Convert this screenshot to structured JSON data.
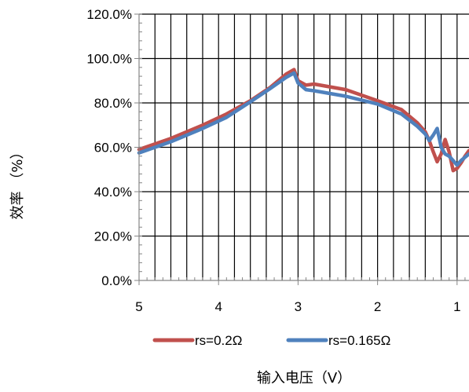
{
  "chart_data": {
    "type": "line",
    "title": "",
    "xlabel": "输入电压（V）",
    "ylabel": "效率 （%）",
    "x_reversed": true,
    "xlim": [
      5,
      0.85
    ],
    "ylim": [
      0,
      120
    ],
    "x_ticks": [
      {
        "value": 5,
        "label": "5"
      },
      {
        "value": 4,
        "label": "4"
      },
      {
        "value": 3,
        "label": "3"
      },
      {
        "value": 2,
        "label": "2"
      },
      {
        "value": 1,
        "label": "1"
      }
    ],
    "y_ticks": [
      {
        "value": 0,
        "label": "0.0%"
      },
      {
        "value": 20,
        "label": "20.0%"
      },
      {
        "value": 40,
        "label": "40.0%"
      },
      {
        "value": 60,
        "label": "60.0%"
      },
      {
        "value": 80,
        "label": "80.0%"
      },
      {
        "value": 100,
        "label": "100.0%"
      },
      {
        "value": 120,
        "label": "120.0%"
      }
    ],
    "grid": true,
    "legend_position": "bottom",
    "series": [
      {
        "name": "rs=0.2Ω",
        "color": "#C0504D",
        "x": [
          5.0,
          4.6,
          4.2,
          3.9,
          3.6,
          3.35,
          3.15,
          3.05,
          3.0,
          2.9,
          2.8,
          2.4,
          2.0,
          1.7,
          1.5,
          1.4,
          1.35,
          1.3,
          1.25,
          1.2,
          1.15,
          1.1,
          1.05,
          1.0,
          0.95,
          0.9,
          0.85
        ],
        "y": [
          59,
          64,
          70,
          75,
          81,
          87,
          93,
          95,
          90,
          88,
          88.5,
          86,
          81,
          77,
          71,
          67,
          63,
          58,
          53.5,
          57,
          63.5,
          58,
          49.5,
          50.5,
          53,
          56,
          58.5
        ]
      },
      {
        "name": "rs=0.165Ω",
        "color": "#4F81BD",
        "x": [
          5.0,
          4.6,
          4.2,
          3.9,
          3.6,
          3.35,
          3.15,
          3.05,
          3.0,
          2.9,
          2.8,
          2.4,
          2.0,
          1.7,
          1.5,
          1.4,
          1.35,
          1.3,
          1.25,
          1.2,
          1.15,
          1.1,
          1.05,
          1.0,
          0.95,
          0.9,
          0.85
        ],
        "y": [
          57.5,
          62.5,
          68.5,
          73.5,
          80.5,
          86.5,
          91.5,
          93.5,
          89,
          86,
          85.5,
          83,
          79.5,
          75,
          69.5,
          66,
          63,
          65.5,
          68.5,
          60,
          57,
          56,
          54,
          52,
          54,
          55.5,
          57
        ]
      }
    ]
  }
}
